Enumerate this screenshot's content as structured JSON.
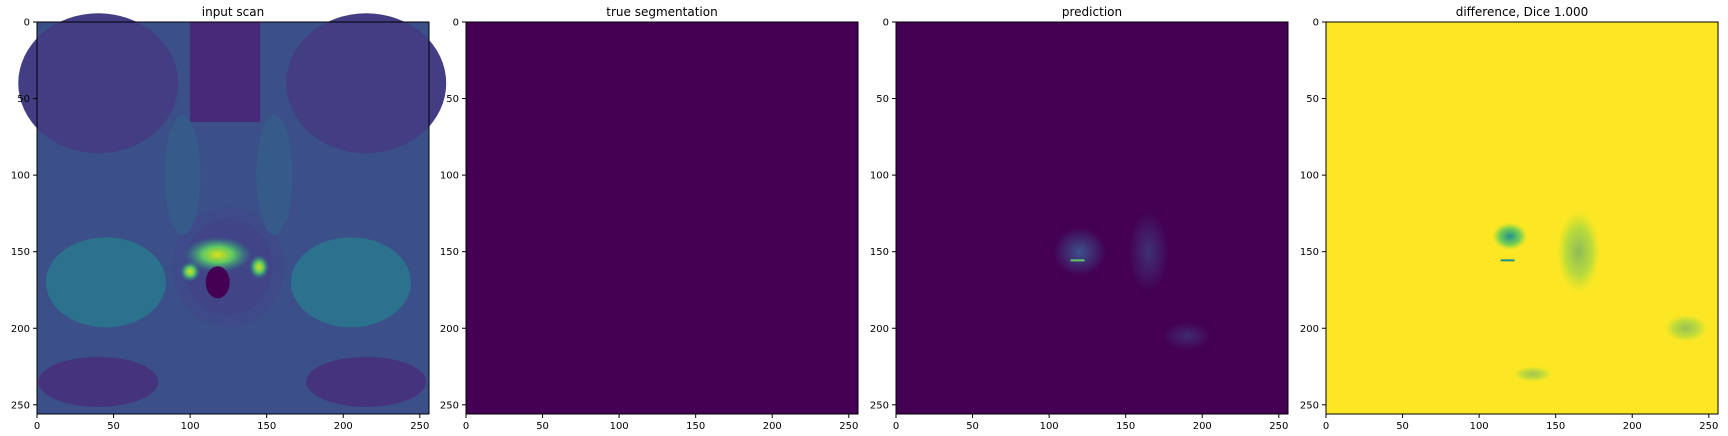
{
  "figure": {
    "panels": [
      {
        "title": "input scan",
        "style": "mri"
      },
      {
        "title": "true segmentation",
        "style": "flat"
      },
      {
        "title": "prediction",
        "style": "pred"
      },
      {
        "title": "difference, Dice 1.000",
        "style": "diff"
      }
    ]
  },
  "chart_data": [
    {
      "type": "heatmap",
      "title": "input scan",
      "xlabel": "",
      "ylabel": "",
      "xlim": [
        0,
        256
      ],
      "ylim": [
        256,
        0
      ],
      "xticks": [
        0,
        50,
        100,
        150,
        200,
        250
      ],
      "yticks": [
        0,
        50,
        100,
        150,
        200,
        250
      ],
      "colormap": "viridis",
      "description_values": "grayscale MRI slice; bright region near center around x 100-145, y 140-180"
    },
    {
      "type": "heatmap",
      "title": "true segmentation",
      "xlabel": "",
      "ylabel": "",
      "xlim": [
        0,
        256
      ],
      "ylim": [
        256,
        0
      ],
      "xticks": [
        0,
        50,
        100,
        150,
        200,
        250
      ],
      "yticks": [
        0,
        50,
        100,
        150,
        200,
        250
      ],
      "colormap": "viridis",
      "uniform_value": 0
    },
    {
      "type": "heatmap",
      "title": "prediction",
      "xlabel": "",
      "ylabel": "",
      "xlim": [
        0,
        256
      ],
      "ylim": [
        256,
        0
      ],
      "xticks": [
        0,
        50,
        100,
        150,
        200,
        250
      ],
      "yticks": [
        0,
        50,
        100,
        150,
        200,
        250
      ],
      "colormap": "viridis",
      "uniform_value": 0
    },
    {
      "type": "heatmap",
      "title": "difference, Dice 1.000",
      "xlabel": "",
      "ylabel": "",
      "xlim": [
        0,
        256
      ],
      "ylim": [
        256,
        0
      ],
      "xticks": [
        0,
        50,
        100,
        150,
        200,
        250
      ],
      "yticks": [
        0,
        50,
        100,
        150,
        200,
        250
      ],
      "colormap": "viridis",
      "uniform_value": 1
    }
  ],
  "colors": {
    "viridis_dark": "#440154",
    "viridis_blue": "#3b528b",
    "viridis_teal": "#21918c",
    "viridis_green": "#5ec962",
    "viridis_yellow": "#fde725"
  }
}
